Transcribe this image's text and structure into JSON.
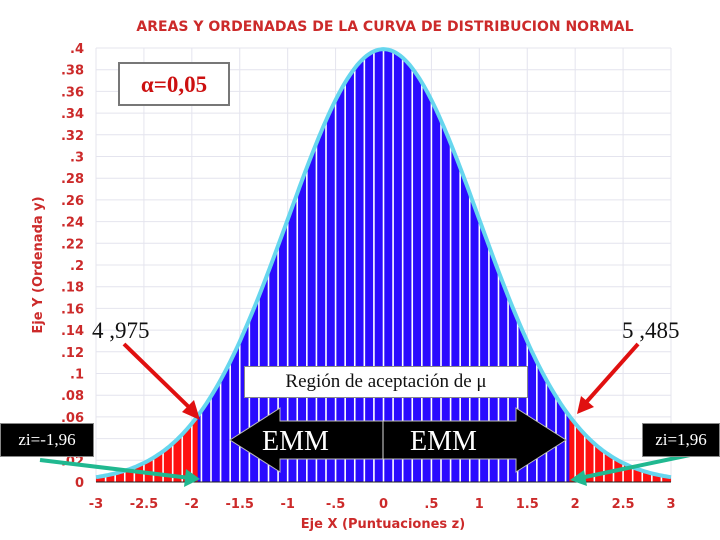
{
  "chart_data": {
    "type": "area",
    "title": "AREAS Y ORDENADAS DE LA CURVA DE DISTRIBUCION NORMAL",
    "xlabel": "Eje X (Puntuaciones z)",
    "ylabel": "Eje Y (Ordenada y)",
    "xlim": [
      -3,
      3
    ],
    "ylim": [
      0,
      0.4
    ],
    "x_ticks": [
      "-3",
      "-2.5",
      "-2",
      "-1.5",
      "-1",
      "-.5",
      "0",
      ".5",
      "1",
      "1.5",
      "2",
      "2.5",
      "3"
    ],
    "y_ticks": [
      "0",
      ".02",
      ".04",
      ".06",
      ".08",
      ".1",
      ".12",
      ".14",
      ".16",
      ".18",
      ".2",
      ".22",
      ".24",
      ".26",
      ".28",
      ".3",
      ".32",
      ".34",
      ".36",
      ".38",
      ".4"
    ],
    "x_tick_values": [
      -3,
      -2.5,
      -2,
      -1.5,
      -1,
      -0.5,
      0,
      0.5,
      1,
      1.5,
      2,
      2.5,
      3
    ],
    "y_tick_values": [
      0,
      0.02,
      0.04,
      0.06,
      0.08,
      0.1,
      0.12,
      0.14,
      0.16,
      0.18,
      0.2,
      0.22,
      0.24,
      0.26,
      0.28,
      0.3,
      0.32,
      0.34,
      0.36,
      0.38,
      0.4
    ],
    "curve": "normal density, mean 0, sd 1",
    "acceptance_region": [
      -1.96,
      1.96
    ],
    "grid": true
  },
  "annotations": {
    "alpha": "α=0,05",
    "lower_bound": "4 ,975",
    "upper_bound": "5 ,485",
    "region": "Región de aceptación de μ",
    "emm_left": "EMM",
    "emm_right": "EMM",
    "z_left": "zi=-1,96",
    "z_right": "zi=1,96"
  },
  "colors": {
    "acceptance_fill": "#2a0bff",
    "tail_fill": "#ff1010",
    "curve_outline": "#66d6ee",
    "axis_text": "#cc2a2a",
    "red_arrow": "#e01010",
    "green_arrow": "#20b890"
  }
}
